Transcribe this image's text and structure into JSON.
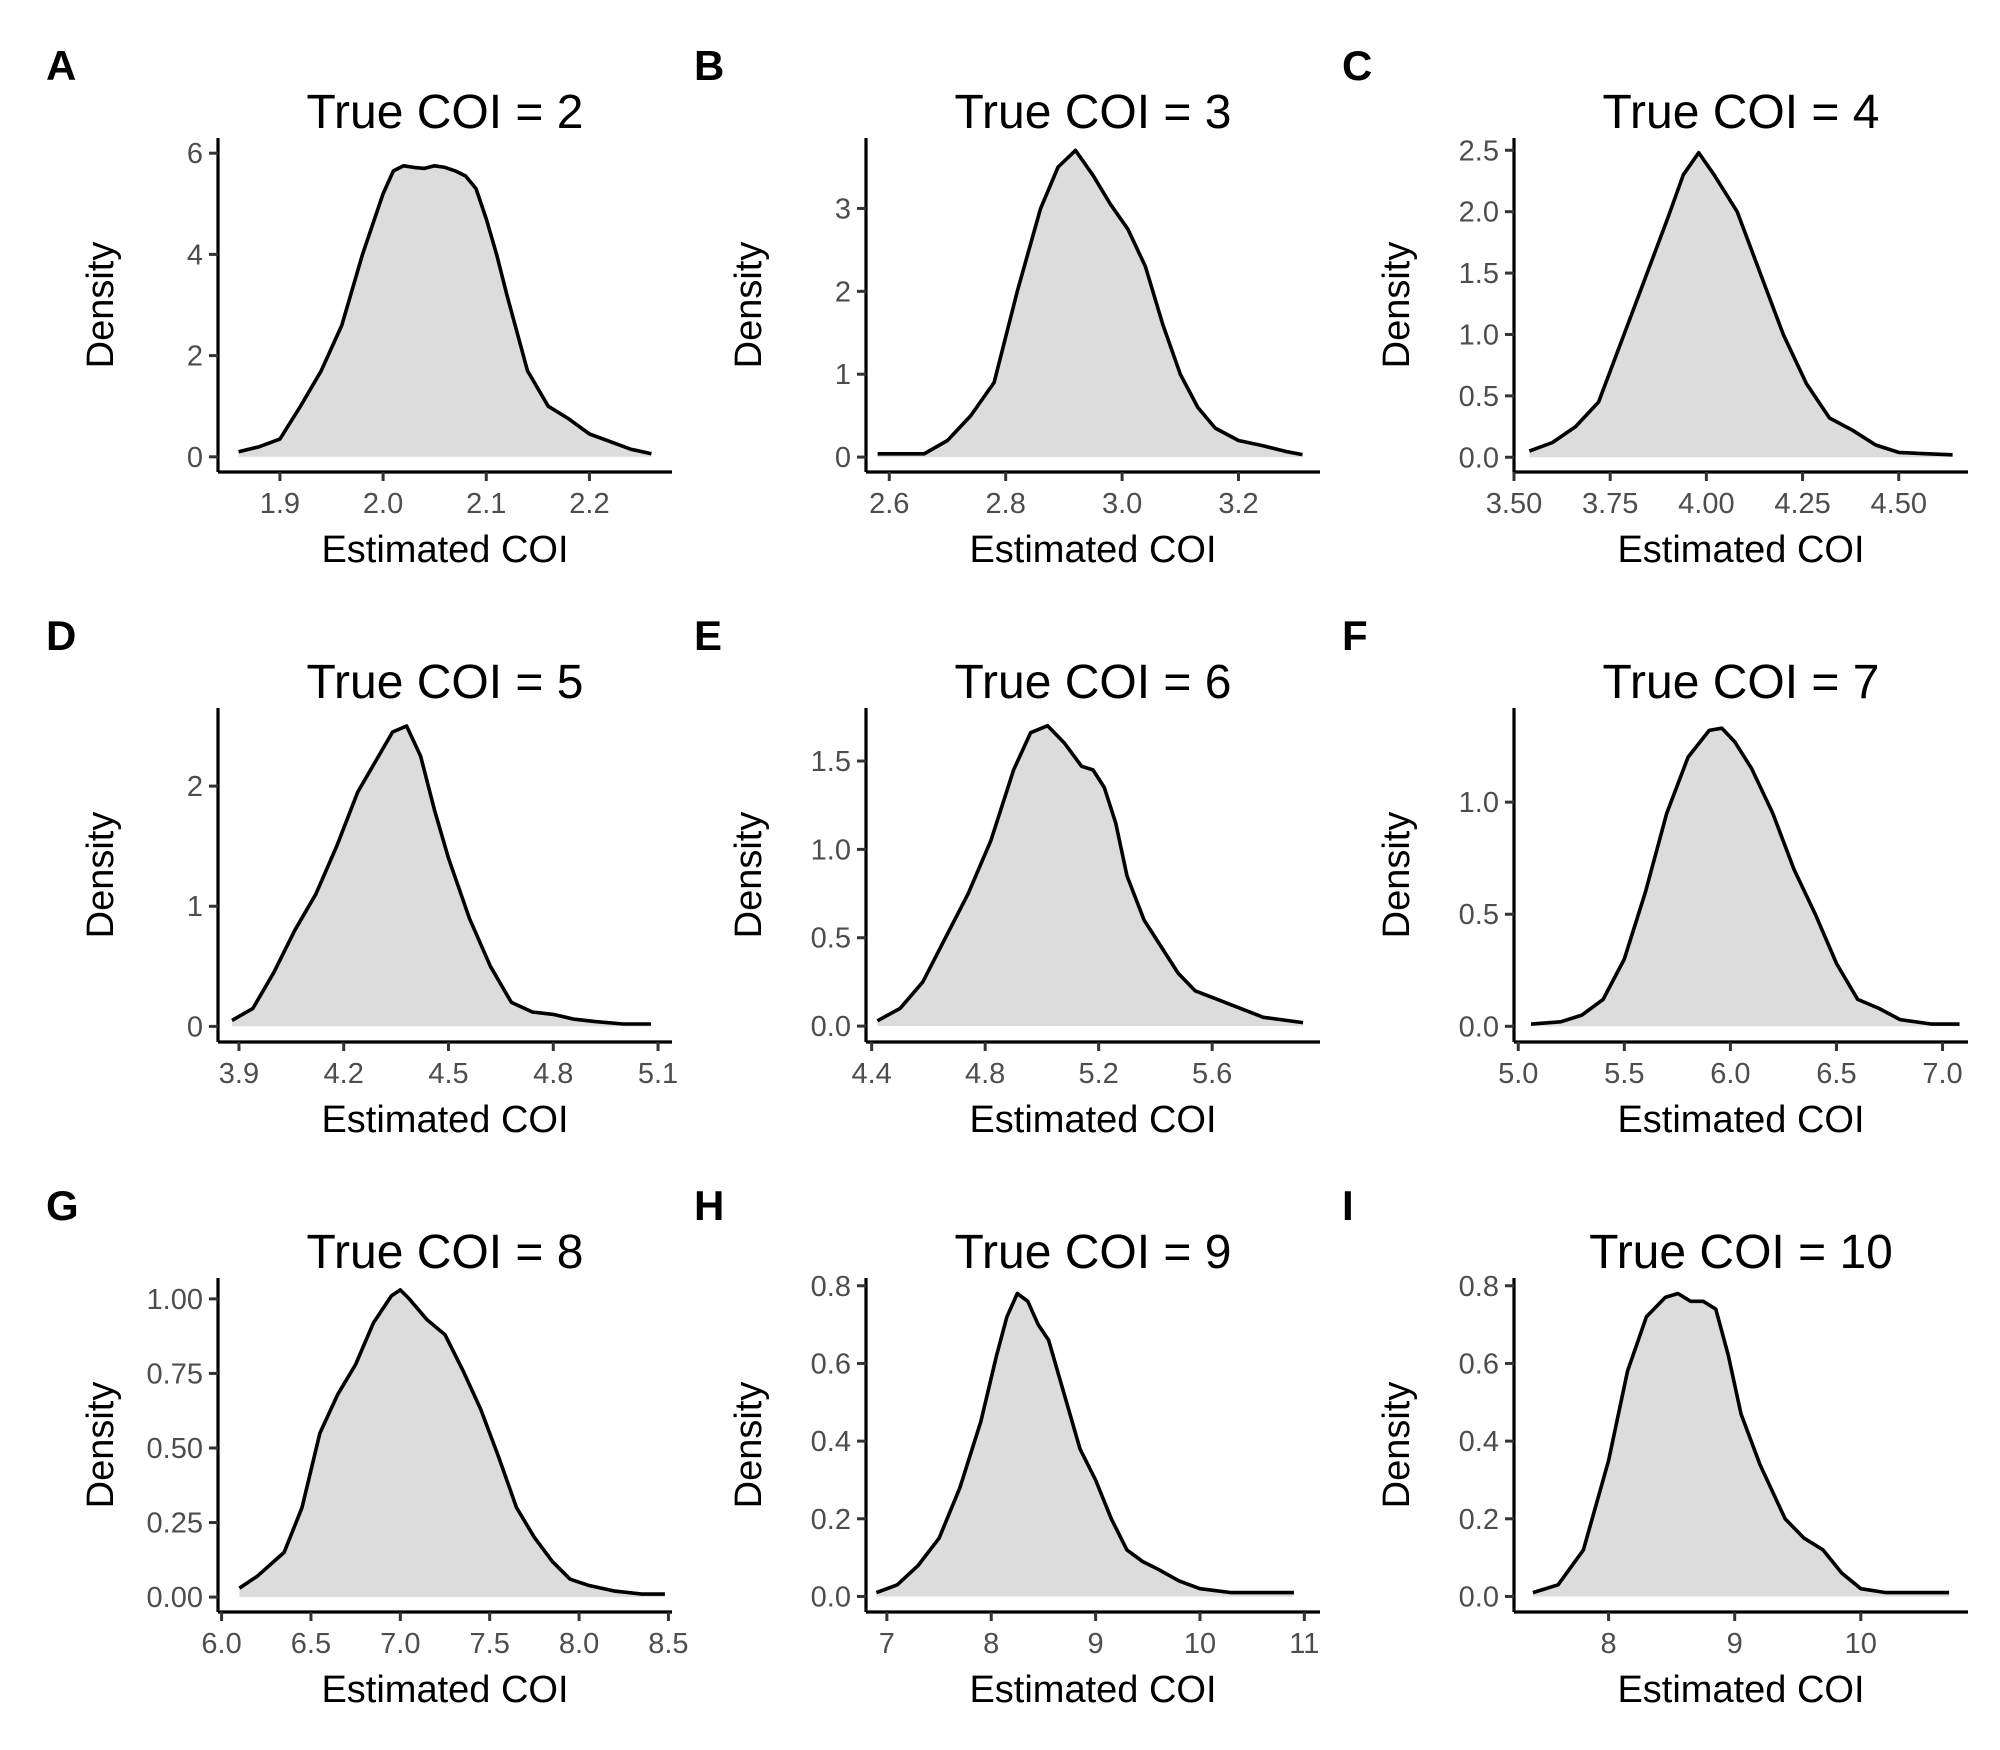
{
  "style": {
    "fill_color": "#DCDCDC",
    "line_color": "#000000",
    "tick_label_color": "#4d4d4d"
  },
  "chart_data": [
    {
      "panel": "A",
      "type": "area",
      "title": "True COI = 2",
      "xlabel": "Estimated COI",
      "ylabel": "Density",
      "xlim": [
        1.84,
        2.28
      ],
      "ylim": [
        -0.3,
        6.3
      ],
      "xticks": [
        1.9,
        2.0,
        2.1,
        2.2
      ],
      "xtick_labels": [
        "1.9",
        "2.0",
        "2.1",
        "2.2"
      ],
      "yticks": [
        0,
        2,
        4,
        6
      ],
      "ytick_labels": [
        "0",
        "2",
        "4",
        "6"
      ],
      "x": [
        1.86,
        1.88,
        1.9,
        1.92,
        1.94,
        1.96,
        1.98,
        2.0,
        2.01,
        2.02,
        2.03,
        2.04,
        2.05,
        2.06,
        2.07,
        2.08,
        2.09,
        2.1,
        2.11,
        2.12,
        2.14,
        2.16,
        2.18,
        2.2,
        2.22,
        2.24,
        2.26
      ],
      "y": [
        0.1,
        0.2,
        0.35,
        1.0,
        1.7,
        2.6,
        4.0,
        5.2,
        5.65,
        5.75,
        5.72,
        5.7,
        5.75,
        5.72,
        5.65,
        5.55,
        5.3,
        4.7,
        4.0,
        3.2,
        1.7,
        1.0,
        0.75,
        0.45,
        0.3,
        0.15,
        0.06
      ]
    },
    {
      "panel": "B",
      "type": "area",
      "title": "True COI = 3",
      "xlabel": "Estimated COI",
      "ylabel": "Density",
      "xlim": [
        2.56,
        3.34
      ],
      "ylim": [
        -0.18,
        3.85
      ],
      "xticks": [
        2.6,
        2.8,
        3.0,
        3.2
      ],
      "xtick_labels": [
        "2.6",
        "2.8",
        "3.0",
        "3.2"
      ],
      "yticks": [
        0,
        1,
        2,
        3
      ],
      "ytick_labels": [
        "0",
        "1",
        "2",
        "3"
      ],
      "x": [
        2.58,
        2.62,
        2.66,
        2.7,
        2.74,
        2.78,
        2.82,
        2.86,
        2.89,
        2.92,
        2.95,
        2.98,
        3.01,
        3.04,
        3.07,
        3.1,
        3.13,
        3.16,
        3.2,
        3.24,
        3.28,
        3.31
      ],
      "y": [
        0.04,
        0.04,
        0.04,
        0.2,
        0.5,
        0.9,
        2.0,
        3.0,
        3.5,
        3.7,
        3.4,
        3.05,
        2.75,
        2.3,
        1.6,
        1.0,
        0.6,
        0.35,
        0.2,
        0.14,
        0.07,
        0.03
      ]
    },
    {
      "panel": "C",
      "type": "area",
      "title": "True COI = 4",
      "xlabel": "Estimated COI",
      "ylabel": "Density",
      "xlim": [
        3.5,
        4.68
      ],
      "ylim": [
        -0.12,
        2.6
      ],
      "xticks": [
        3.5,
        3.75,
        4.0,
        4.25,
        4.5
      ],
      "xtick_labels": [
        "3.50",
        "3.75",
        "4.00",
        "4.25",
        "4.50"
      ],
      "yticks": [
        0.0,
        0.5,
        1.0,
        1.5,
        2.0,
        2.5
      ],
      "ytick_labels": [
        "0.0",
        "0.5",
        "1.0",
        "1.5",
        "2.0",
        "2.5"
      ],
      "x": [
        3.54,
        3.6,
        3.66,
        3.72,
        3.78,
        3.84,
        3.9,
        3.94,
        3.98,
        4.02,
        4.08,
        4.14,
        4.2,
        4.26,
        4.32,
        4.38,
        4.44,
        4.5,
        4.56,
        4.64
      ],
      "y": [
        0.05,
        0.12,
        0.25,
        0.45,
        0.95,
        1.45,
        1.95,
        2.3,
        2.48,
        2.3,
        2.0,
        1.5,
        1.0,
        0.6,
        0.32,
        0.22,
        0.1,
        0.04,
        0.03,
        0.02
      ]
    },
    {
      "panel": "D",
      "type": "area",
      "title": "True COI = 5",
      "xlabel": "Estimated COI",
      "ylabel": "Density",
      "xlim": [
        3.84,
        5.14
      ],
      "ylim": [
        -0.13,
        2.65
      ],
      "xticks": [
        3.9,
        4.2,
        4.5,
        4.8,
        5.1
      ],
      "xtick_labels": [
        "3.9",
        "4.2",
        "4.5",
        "4.8",
        "5.1"
      ],
      "yticks": [
        0,
        1,
        2
      ],
      "ytick_labels": [
        "0",
        "1",
        "2"
      ],
      "x": [
        3.88,
        3.94,
        4.0,
        4.06,
        4.12,
        4.18,
        4.24,
        4.3,
        4.34,
        4.38,
        4.42,
        4.46,
        4.5,
        4.56,
        4.62,
        4.68,
        4.74,
        4.8,
        4.86,
        4.92,
        5.0,
        5.08
      ],
      "y": [
        0.05,
        0.15,
        0.45,
        0.8,
        1.1,
        1.5,
        1.95,
        2.25,
        2.45,
        2.5,
        2.25,
        1.8,
        1.4,
        0.9,
        0.5,
        0.2,
        0.12,
        0.1,
        0.06,
        0.04,
        0.02,
        0.02
      ]
    },
    {
      "panel": "E",
      "type": "area",
      "title": "True COI = 6",
      "xlabel": "Estimated COI",
      "ylabel": "Density",
      "xlim": [
        4.38,
        5.98
      ],
      "ylim": [
        -0.09,
        1.8
      ],
      "xticks": [
        4.4,
        4.8,
        5.2,
        5.6
      ],
      "xtick_labels": [
        "4.4",
        "4.8",
        "5.2",
        "5.6"
      ],
      "yticks": [
        0.0,
        0.5,
        1.0,
        1.5
      ],
      "ytick_labels": [
        "0.0",
        "0.5",
        "1.0",
        "1.5"
      ],
      "x": [
        4.42,
        4.5,
        4.58,
        4.66,
        4.74,
        4.82,
        4.9,
        4.96,
        5.02,
        5.08,
        5.14,
        5.18,
        5.22,
        5.26,
        5.3,
        5.36,
        5.42,
        5.48,
        5.54,
        5.62,
        5.7,
        5.78,
        5.92
      ],
      "y": [
        0.03,
        0.1,
        0.25,
        0.5,
        0.75,
        1.05,
        1.45,
        1.66,
        1.7,
        1.6,
        1.47,
        1.45,
        1.35,
        1.15,
        0.85,
        0.6,
        0.45,
        0.3,
        0.2,
        0.15,
        0.1,
        0.05,
        0.02
      ]
    },
    {
      "panel": "F",
      "type": "area",
      "title": "True COI = 7",
      "xlabel": "Estimated COI",
      "ylabel": "Density",
      "xlim": [
        4.98,
        7.12
      ],
      "ylim": [
        -0.07,
        1.42
      ],
      "xticks": [
        5.0,
        5.5,
        6.0,
        6.5,
        7.0
      ],
      "xtick_labels": [
        "5.0",
        "5.5",
        "6.0",
        "6.5",
        "7.0"
      ],
      "yticks": [
        0.0,
        0.5,
        1.0
      ],
      "ytick_labels": [
        "0.0",
        "0.5",
        "1.0"
      ],
      "x": [
        5.06,
        5.2,
        5.3,
        5.4,
        5.5,
        5.6,
        5.7,
        5.8,
        5.9,
        5.96,
        6.02,
        6.1,
        6.2,
        6.3,
        6.4,
        6.5,
        6.6,
        6.7,
        6.8,
        6.95,
        7.08
      ],
      "y": [
        0.01,
        0.02,
        0.05,
        0.12,
        0.3,
        0.6,
        0.95,
        1.2,
        1.32,
        1.33,
        1.27,
        1.15,
        0.95,
        0.7,
        0.5,
        0.28,
        0.12,
        0.08,
        0.03,
        0.01,
        0.01
      ]
    },
    {
      "panel": "G",
      "type": "area",
      "title": "True COI = 8",
      "xlabel": "Estimated COI",
      "ylabel": "Density",
      "xlim": [
        5.98,
        8.52
      ],
      "ylim": [
        -0.05,
        1.07
      ],
      "xticks": [
        6.0,
        6.5,
        7.0,
        7.5,
        8.0,
        8.5
      ],
      "xtick_labels": [
        "6.0",
        "6.5",
        "7.0",
        "7.5",
        "8.0",
        "8.5"
      ],
      "yticks": [
        0.0,
        0.25,
        0.5,
        0.75,
        1.0
      ],
      "ytick_labels": [
        "0.00",
        "0.25",
        "0.50",
        "0.75",
        "1.00"
      ],
      "x": [
        6.1,
        6.2,
        6.35,
        6.45,
        6.55,
        6.65,
        6.75,
        6.85,
        6.95,
        7.0,
        7.05,
        7.15,
        7.25,
        7.35,
        7.45,
        7.55,
        7.65,
        7.75,
        7.85,
        7.95,
        8.05,
        8.2,
        8.35,
        8.48
      ],
      "y": [
        0.03,
        0.07,
        0.15,
        0.3,
        0.55,
        0.68,
        0.78,
        0.92,
        1.01,
        1.03,
        1.0,
        0.93,
        0.88,
        0.76,
        0.63,
        0.47,
        0.3,
        0.2,
        0.12,
        0.06,
        0.04,
        0.02,
        0.01,
        0.01
      ]
    },
    {
      "panel": "H",
      "type": "area",
      "title": "True COI = 9",
      "xlabel": "Estimated COI",
      "ylabel": "Density",
      "xlim": [
        6.8,
        11.15
      ],
      "ylim": [
        -0.04,
        0.82
      ],
      "xticks": [
        7,
        8,
        9,
        10,
        11
      ],
      "xtick_labels": [
        "7",
        "8",
        "9",
        "10",
        "11"
      ],
      "yticks": [
        0.0,
        0.2,
        0.4,
        0.6,
        0.8
      ],
      "ytick_labels": [
        "0.0",
        "0.2",
        "0.4",
        "0.6",
        "0.8"
      ],
      "x": [
        6.9,
        7.1,
        7.3,
        7.5,
        7.7,
        7.9,
        8.05,
        8.15,
        8.25,
        8.35,
        8.45,
        8.55,
        8.7,
        8.85,
        9.0,
        9.15,
        9.3,
        9.45,
        9.6,
        9.8,
        10.0,
        10.3,
        10.6,
        10.9
      ],
      "y": [
        0.01,
        0.03,
        0.08,
        0.15,
        0.28,
        0.45,
        0.62,
        0.72,
        0.78,
        0.76,
        0.7,
        0.66,
        0.52,
        0.38,
        0.3,
        0.2,
        0.12,
        0.09,
        0.07,
        0.04,
        0.02,
        0.01,
        0.01,
        0.01
      ]
    },
    {
      "panel": "I",
      "type": "area",
      "title": "True COI = 10",
      "xlabel": "Estimated COI",
      "ylabel": "Density",
      "xlim": [
        7.25,
        10.85
      ],
      "ylim": [
        -0.04,
        0.82
      ],
      "xticks": [
        8,
        9,
        10
      ],
      "xtick_labels": [
        "8",
        "9",
        "10"
      ],
      "yticks": [
        0.0,
        0.2,
        0.4,
        0.6,
        0.8
      ],
      "ytick_labels": [
        "0.0",
        "0.2",
        "0.4",
        "0.6",
        "0.8"
      ],
      "x": [
        7.4,
        7.6,
        7.8,
        8.0,
        8.15,
        8.3,
        8.45,
        8.55,
        8.65,
        8.75,
        8.85,
        8.95,
        9.05,
        9.2,
        9.4,
        9.55,
        9.7,
        9.85,
        10.0,
        10.2,
        10.45,
        10.7
      ],
      "y": [
        0.01,
        0.03,
        0.12,
        0.35,
        0.58,
        0.72,
        0.77,
        0.78,
        0.76,
        0.76,
        0.74,
        0.62,
        0.47,
        0.34,
        0.2,
        0.15,
        0.12,
        0.06,
        0.02,
        0.01,
        0.01,
        0.01
      ]
    }
  ]
}
